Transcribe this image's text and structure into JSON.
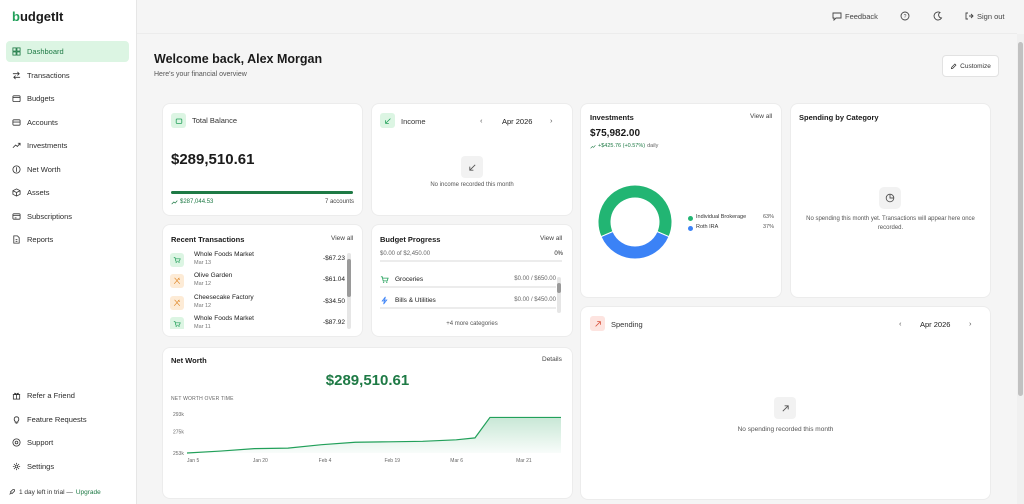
{
  "app": {
    "name": "budgetIt",
    "logo_leaf": "b",
    "logo_rest": "udgetIt"
  },
  "sidebar": {
    "items": [
      {
        "label": "Dashboard",
        "icon": "dashboard-icon"
      },
      {
        "label": "Transactions",
        "icon": "transactions-icon"
      },
      {
        "label": "Budgets",
        "icon": "budgets-icon"
      },
      {
        "label": "Accounts",
        "icon": "accounts-icon"
      },
      {
        "label": "Investments",
        "icon": "investments-icon"
      },
      {
        "label": "Net Worth",
        "icon": "net-worth-icon"
      },
      {
        "label": "Assets",
        "icon": "assets-icon"
      },
      {
        "label": "Subscriptions",
        "icon": "subscriptions-icon"
      },
      {
        "label": "Reports",
        "icon": "reports-icon"
      }
    ],
    "bottom_items": [
      {
        "label": "Refer a Friend",
        "icon": "gift-icon"
      },
      {
        "label": "Feature Requests",
        "icon": "lightbulb-icon"
      },
      {
        "label": "Support",
        "icon": "help-icon"
      },
      {
        "label": "Settings",
        "icon": "gear-icon"
      }
    ],
    "trial_text": "1 day left in trial — ",
    "trial_link": "Upgrade"
  },
  "topbar": {
    "feedback": "Feedback",
    "signout": "Sign out"
  },
  "header": {
    "welcome": "Welcome back, Alex Morgan",
    "subtitle": "Here's your financial overview",
    "customize": "Customize"
  },
  "total_balance": {
    "title": "Total Balance",
    "amount": "$289,510.61",
    "sub_amount": "$287,044.53",
    "accounts": "7 accounts",
    "progress": 1.0
  },
  "income": {
    "title": "Income",
    "month": "Apr 2026",
    "empty": "No income recorded this month"
  },
  "investments": {
    "title": "Investments",
    "view_all": "View all",
    "amount": "$75,982.00",
    "change": "+$425.76 (+0.57%)",
    "period": "daily",
    "chart_data": {
      "type": "pie",
      "categories": [
        "Individual Brokerage",
        "Roth IRA"
      ],
      "values": [
        63,
        37
      ],
      "labels": [
        "63%",
        "37%"
      ],
      "colors": [
        "#22b573",
        "#3b82f6"
      ]
    }
  },
  "spending_by_category": {
    "title": "Spending by Category",
    "empty": "No spending this month yet. Transactions will appear here once recorded."
  },
  "recent_transactions": {
    "title": "Recent Transactions",
    "view_all": "View all",
    "rows": [
      {
        "name": "Whole Foods Market",
        "date": "Mar 13",
        "amount": "-$67.23",
        "kind": "cart"
      },
      {
        "name": "Olive Garden",
        "date": "Mar 12",
        "amount": "-$61.04",
        "kind": "food"
      },
      {
        "name": "Cheesecake Factory",
        "date": "Mar 12",
        "amount": "-$34.50",
        "kind": "food"
      },
      {
        "name": "Whole Foods Market",
        "date": "Mar 11",
        "amount": "-$87.92",
        "kind": "cart"
      }
    ]
  },
  "budget_progress": {
    "title": "Budget Progress",
    "view_all": "View all",
    "summary": "$0.00 of $2,450.00",
    "percent": "0%",
    "rows": [
      {
        "label": "Groceries",
        "value": "$0.00 / $650.00",
        "icon": "cart-icon"
      },
      {
        "label": "Bills & Utilities",
        "value": "$0.00 / $450.00",
        "icon": "bolt-icon"
      }
    ],
    "more": "+4 more categories"
  },
  "spending": {
    "title": "Spending",
    "month": "Apr 2026",
    "empty": "No spending recorded this month"
  },
  "net_worth": {
    "title": "Net Worth",
    "details": "Details",
    "amount": "$289,510.61",
    "chart_label": "NET WORTH OVER TIME",
    "chart_data": {
      "type": "area",
      "x_ticks": [
        "Jan 5",
        "Jan 20",
        "Feb 4",
        "Feb 19",
        "Mar 6",
        "Mar 21"
      ],
      "y_ticks": [
        "253k",
        "275k",
        "293k"
      ],
      "ylim": [
        253,
        293
      ],
      "points": [
        {
          "x": 0,
          "y": 253
        },
        {
          "x": 0.09,
          "y": 255
        },
        {
          "x": 0.18,
          "y": 257.5
        },
        {
          "x": 0.27,
          "y": 258
        },
        {
          "x": 0.36,
          "y": 261.5
        },
        {
          "x": 0.45,
          "y": 264
        },
        {
          "x": 0.54,
          "y": 264.5
        },
        {
          "x": 0.63,
          "y": 265
        },
        {
          "x": 0.72,
          "y": 266.5
        },
        {
          "x": 0.77,
          "y": 268.5
        },
        {
          "x": 0.81,
          "y": 289.5
        },
        {
          "x": 0.9,
          "y": 289.5
        },
        {
          "x": 1.0,
          "y": 289.5
        }
      ],
      "color": "#22a05a"
    }
  },
  "colors": {
    "accent": "#22a05a",
    "accent_light": "#dcf5e3"
  }
}
